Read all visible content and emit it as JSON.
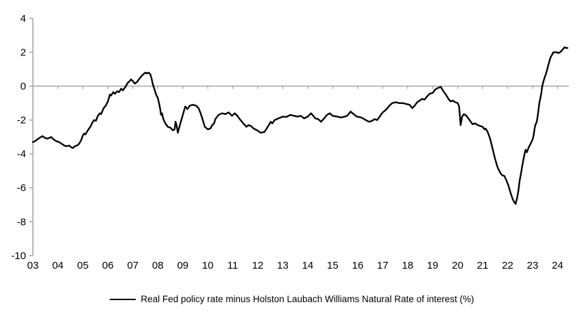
{
  "chart_data": {
    "type": "line",
    "title": "",
    "xlabel": "",
    "ylabel": "",
    "grid": "zero-line-only",
    "legend_position": "bottom-center",
    "x_axis": {
      "tick_labels": [
        "03",
        "04",
        "05",
        "06",
        "07",
        "08",
        "09",
        "10",
        "11",
        "12",
        "13",
        "14",
        "15",
        "16",
        "17",
        "18",
        "19",
        "20",
        "21",
        "22",
        "23",
        "24"
      ],
      "tick_years": [
        3,
        4,
        5,
        6,
        7,
        8,
        9,
        10,
        11,
        12,
        13,
        14,
        15,
        16,
        17,
        18,
        19,
        20,
        21,
        22,
        23,
        24
      ],
      "range_years": [
        3,
        24.45
      ]
    },
    "y_axis": {
      "tick_values": [
        4,
        2,
        0,
        -2,
        -4,
        -6,
        -8,
        -10
      ],
      "range": [
        -10,
        4
      ]
    },
    "series": [
      {
        "name": "Real Fed policy rate minus Holston Laubach Williams Natural Rate of interest (%)",
        "color": "#000000",
        "points": [
          [
            3.0,
            -3.3
          ],
          [
            3.08,
            -3.25
          ],
          [
            3.17,
            -3.15
          ],
          [
            3.27,
            -3.05
          ],
          [
            3.38,
            -2.95
          ],
          [
            3.48,
            -3.05
          ],
          [
            3.58,
            -3.1
          ],
          [
            3.67,
            -3.05
          ],
          [
            3.73,
            -3.0
          ],
          [
            3.83,
            -3.15
          ],
          [
            3.95,
            -3.25
          ],
          [
            4.05,
            -3.3
          ],
          [
            4.15,
            -3.4
          ],
          [
            4.25,
            -3.5
          ],
          [
            4.35,
            -3.55
          ],
          [
            4.45,
            -3.5
          ],
          [
            4.52,
            -3.6
          ],
          [
            4.6,
            -3.65
          ],
          [
            4.68,
            -3.55
          ],
          [
            4.77,
            -3.5
          ],
          [
            4.85,
            -3.4
          ],
          [
            4.93,
            -3.2
          ],
          [
            5.0,
            -2.9
          ],
          [
            5.05,
            -2.8
          ],
          [
            5.1,
            -2.85
          ],
          [
            5.2,
            -2.6
          ],
          [
            5.3,
            -2.4
          ],
          [
            5.38,
            -2.15
          ],
          [
            5.45,
            -2.0
          ],
          [
            5.52,
            -2.05
          ],
          [
            5.6,
            -1.75
          ],
          [
            5.68,
            -1.6
          ],
          [
            5.73,
            -1.65
          ],
          [
            5.83,
            -1.3
          ],
          [
            5.92,
            -1.15
          ],
          [
            6.0,
            -0.9
          ],
          [
            6.08,
            -0.5
          ],
          [
            6.13,
            -0.55
          ],
          [
            6.22,
            -0.35
          ],
          [
            6.28,
            -0.45
          ],
          [
            6.38,
            -0.3
          ],
          [
            6.45,
            -0.35
          ],
          [
            6.53,
            -0.15
          ],
          [
            6.6,
            -0.25
          ],
          [
            6.7,
            -0.05
          ],
          [
            6.8,
            0.2
          ],
          [
            6.88,
            0.3
          ],
          [
            6.93,
            0.4
          ],
          [
            7.0,
            0.3
          ],
          [
            7.08,
            0.15
          ],
          [
            7.17,
            0.25
          ],
          [
            7.27,
            0.45
          ],
          [
            7.35,
            0.6
          ],
          [
            7.42,
            0.7
          ],
          [
            7.5,
            0.8
          ],
          [
            7.57,
            0.75
          ],
          [
            7.63,
            0.8
          ],
          [
            7.7,
            0.7
          ],
          [
            7.75,
            0.45
          ],
          [
            7.8,
            0.1
          ],
          [
            7.87,
            -0.2
          ],
          [
            7.93,
            -0.5
          ],
          [
            8.0,
            -0.7
          ],
          [
            8.04,
            -0.95
          ],
          [
            8.09,
            -1.3
          ],
          [
            8.13,
            -1.7
          ],
          [
            8.17,
            -1.6
          ],
          [
            8.22,
            -1.95
          ],
          [
            8.3,
            -2.2
          ],
          [
            8.4,
            -2.4
          ],
          [
            8.5,
            -2.45
          ],
          [
            8.6,
            -2.6
          ],
          [
            8.67,
            -2.55
          ],
          [
            8.71,
            -2.1
          ],
          [
            8.75,
            -2.3
          ],
          [
            8.8,
            -2.75
          ],
          [
            8.9,
            -2.2
          ],
          [
            9.0,
            -1.7
          ],
          [
            9.1,
            -1.2
          ],
          [
            9.18,
            -1.35
          ],
          [
            9.28,
            -1.15
          ],
          [
            9.4,
            -1.1
          ],
          [
            9.53,
            -1.15
          ],
          [
            9.63,
            -1.3
          ],
          [
            9.7,
            -1.55
          ],
          [
            9.78,
            -1.9
          ],
          [
            9.88,
            -2.4
          ],
          [
            10.0,
            -2.55
          ],
          [
            10.1,
            -2.5
          ],
          [
            10.18,
            -2.3
          ],
          [
            10.25,
            -2.2
          ],
          [
            10.3,
            -1.95
          ],
          [
            10.43,
            -1.7
          ],
          [
            10.57,
            -1.6
          ],
          [
            10.7,
            -1.65
          ],
          [
            10.83,
            -1.55
          ],
          [
            10.97,
            -1.75
          ],
          [
            11.08,
            -1.6
          ],
          [
            11.18,
            -1.75
          ],
          [
            11.28,
            -1.95
          ],
          [
            11.42,
            -2.2
          ],
          [
            11.55,
            -2.4
          ],
          [
            11.63,
            -2.3
          ],
          [
            11.73,
            -2.35
          ],
          [
            11.83,
            -2.5
          ],
          [
            11.97,
            -2.6
          ],
          [
            12.12,
            -2.75
          ],
          [
            12.27,
            -2.7
          ],
          [
            12.4,
            -2.4
          ],
          [
            12.52,
            -2.1
          ],
          [
            12.58,
            -2.2
          ],
          [
            12.68,
            -2.0
          ],
          [
            12.83,
            -1.9
          ],
          [
            13.0,
            -1.8
          ],
          [
            13.15,
            -1.82
          ],
          [
            13.3,
            -1.7
          ],
          [
            13.45,
            -1.75
          ],
          [
            13.6,
            -1.8
          ],
          [
            13.72,
            -1.75
          ],
          [
            13.85,
            -1.9
          ],
          [
            14.0,
            -1.8
          ],
          [
            14.13,
            -1.6
          ],
          [
            14.22,
            -1.75
          ],
          [
            14.3,
            -1.9
          ],
          [
            14.42,
            -1.95
          ],
          [
            14.53,
            -2.1
          ],
          [
            14.63,
            -1.95
          ],
          [
            14.77,
            -1.7
          ],
          [
            14.88,
            -1.6
          ],
          [
            15.0,
            -1.75
          ],
          [
            15.18,
            -1.8
          ],
          [
            15.33,
            -1.85
          ],
          [
            15.48,
            -1.8
          ],
          [
            15.58,
            -1.75
          ],
          [
            15.72,
            -1.5
          ],
          [
            15.83,
            -1.65
          ],
          [
            15.97,
            -1.8
          ],
          [
            16.15,
            -1.85
          ],
          [
            16.32,
            -2.0
          ],
          [
            16.45,
            -2.1
          ],
          [
            16.57,
            -2.05
          ],
          [
            16.68,
            -1.95
          ],
          [
            16.78,
            -2.0
          ],
          [
            16.88,
            -1.8
          ],
          [
            17.0,
            -1.55
          ],
          [
            17.13,
            -1.4
          ],
          [
            17.27,
            -1.15
          ],
          [
            17.38,
            -1.0
          ],
          [
            17.52,
            -0.95
          ],
          [
            17.67,
            -1.0
          ],
          [
            17.8,
            -1.0
          ],
          [
            17.93,
            -1.05
          ],
          [
            18.08,
            -1.1
          ],
          [
            18.18,
            -1.3
          ],
          [
            18.28,
            -1.15
          ],
          [
            18.38,
            -0.95
          ],
          [
            18.48,
            -0.85
          ],
          [
            18.58,
            -0.75
          ],
          [
            18.67,
            -0.8
          ],
          [
            18.78,
            -0.6
          ],
          [
            18.88,
            -0.45
          ],
          [
            19.0,
            -0.4
          ],
          [
            19.1,
            -0.2
          ],
          [
            19.22,
            -0.1
          ],
          [
            19.33,
            -0.05
          ],
          [
            19.43,
            -0.3
          ],
          [
            19.53,
            -0.5
          ],
          [
            19.63,
            -0.75
          ],
          [
            19.72,
            -0.9
          ],
          [
            19.8,
            -0.85
          ],
          [
            19.92,
            -0.95
          ],
          [
            20.0,
            -1.0
          ],
          [
            20.06,
            -1.2
          ],
          [
            20.12,
            -2.3
          ],
          [
            20.18,
            -1.8
          ],
          [
            20.25,
            -1.65
          ],
          [
            20.35,
            -1.75
          ],
          [
            20.5,
            -2.05
          ],
          [
            20.6,
            -2.25
          ],
          [
            20.7,
            -2.2
          ],
          [
            20.8,
            -2.3
          ],
          [
            20.9,
            -2.35
          ],
          [
            21.0,
            -2.4
          ],
          [
            21.07,
            -2.55
          ],
          [
            21.12,
            -2.5
          ],
          [
            21.2,
            -2.7
          ],
          [
            21.3,
            -3.1
          ],
          [
            21.4,
            -3.7
          ],
          [
            21.5,
            -4.3
          ],
          [
            21.6,
            -4.8
          ],
          [
            21.7,
            -5.1
          ],
          [
            21.77,
            -5.25
          ],
          [
            21.87,
            -5.3
          ],
          [
            21.95,
            -5.55
          ],
          [
            22.03,
            -5.85
          ],
          [
            22.12,
            -6.3
          ],
          [
            22.2,
            -6.65
          ],
          [
            22.27,
            -6.85
          ],
          [
            22.32,
            -6.95
          ],
          [
            22.38,
            -6.6
          ],
          [
            22.43,
            -6.2
          ],
          [
            22.48,
            -5.6
          ],
          [
            22.53,
            -5.2
          ],
          [
            22.58,
            -4.75
          ],
          [
            22.63,
            -4.35
          ],
          [
            22.68,
            -4.0
          ],
          [
            22.72,
            -3.75
          ],
          [
            22.77,
            -3.9
          ],
          [
            22.85,
            -3.6
          ],
          [
            22.92,
            -3.4
          ],
          [
            23.0,
            -3.15
          ],
          [
            23.04,
            -2.9
          ],
          [
            23.08,
            -2.5
          ],
          [
            23.12,
            -2.25
          ],
          [
            23.17,
            -2.1
          ],
          [
            23.22,
            -1.6
          ],
          [
            23.27,
            -1.0
          ],
          [
            23.3,
            -0.8
          ],
          [
            23.35,
            -0.4
          ],
          [
            23.38,
            -0.05
          ],
          [
            23.42,
            0.2
          ],
          [
            23.47,
            0.45
          ],
          [
            23.52,
            0.67
          ],
          [
            23.57,
            0.9
          ],
          [
            23.62,
            1.2
          ],
          [
            23.67,
            1.45
          ],
          [
            23.72,
            1.7
          ],
          [
            23.78,
            1.85
          ],
          [
            23.83,
            2.0
          ],
          [
            23.9,
            2.0
          ],
          [
            23.97,
            2.0
          ],
          [
            24.03,
            1.95
          ],
          [
            24.1,
            2.0
          ],
          [
            24.17,
            2.1
          ],
          [
            24.22,
            2.2
          ],
          [
            24.28,
            2.3
          ],
          [
            24.33,
            2.25
          ],
          [
            24.4,
            2.25
          ]
        ]
      }
    ]
  },
  "legend": {
    "label": "Real Fed policy rate minus Holston Laubach Williams Natural Rate of interest (%)"
  },
  "colors": {
    "line": "#000000",
    "axis": "#a6a6a6",
    "zero_line": "#a6a6a6",
    "text": "#000000",
    "background": "#ffffff"
  }
}
